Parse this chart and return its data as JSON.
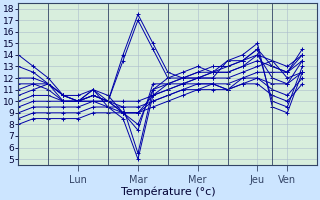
{
  "title": "Température (°c)",
  "bg_color": "#cce5ff",
  "plot_bg": "#d8eedd",
  "grid_color": "#aabbcc",
  "line_color": "#0000aa",
  "ylim": [
    4.5,
    18.5
  ],
  "xlim": [
    0.0,
    120.0
  ],
  "yticks": [
    5,
    6,
    7,
    8,
    9,
    10,
    11,
    12,
    13,
    14,
    15,
    16,
    17,
    18
  ],
  "day_labels": [
    "Lun",
    "Mar",
    "Mer",
    "Jeu",
    "Ven"
  ],
  "day_tick_x": [
    24,
    48,
    72,
    96,
    108
  ],
  "day_sep_x": [
    12,
    36,
    60,
    84,
    102
  ],
  "forecasts": [
    [
      0,
      14.0,
      6,
      13.0,
      12,
      12.0,
      18,
      10.5,
      24,
      10.0,
      30,
      10.0,
      36,
      9.5,
      42,
      8.5,
      48,
      5.0,
      54,
      10.5,
      60,
      11.5,
      66,
      12.0,
      72,
      12.5,
      78,
      12.5,
      84,
      12.5,
      90,
      13.0,
      96,
      14.0,
      102,
      13.5,
      108,
      12.0,
      114,
      12.5
    ],
    [
      0,
      13.0,
      6,
      12.5,
      12,
      11.5,
      18,
      10.5,
      24,
      10.0,
      30,
      10.0,
      36,
      10.0,
      42,
      9.5,
      48,
      5.5,
      54,
      11.0,
      60,
      12.0,
      66,
      12.5,
      72,
      13.0,
      78,
      12.5,
      84,
      13.0,
      90,
      13.5,
      96,
      14.5,
      102,
      13.0,
      108,
      12.5,
      114,
      14.0
    ],
    [
      0,
      12.0,
      6,
      12.0,
      12,
      11.5,
      18,
      10.5,
      24,
      10.0,
      30,
      10.5,
      36,
      10.0,
      42,
      14.0,
      48,
      17.5,
      54,
      15.0,
      60,
      12.5,
      66,
      12.0,
      72,
      12.0,
      78,
      12.0,
      84,
      13.5,
      90,
      14.0,
      96,
      15.0,
      102,
      9.5,
      108,
      9.0,
      114,
      12.5
    ],
    [
      0,
      11.5,
      6,
      11.5,
      12,
      11.0,
      18,
      10.0,
      24,
      10.0,
      30,
      10.5,
      36,
      10.0,
      42,
      13.5,
      48,
      17.0,
      54,
      14.5,
      60,
      12.0,
      66,
      12.0,
      72,
      12.0,
      78,
      12.5,
      84,
      13.5,
      90,
      13.5,
      96,
      14.5,
      102,
      10.0,
      108,
      9.5,
      114,
      13.0
    ],
    [
      0,
      11.0,
      6,
      11.5,
      12,
      11.5,
      18,
      10.5,
      24,
      10.5,
      30,
      11.0,
      36,
      9.5,
      42,
      9.0,
      48,
      7.5,
      54,
      11.5,
      60,
      11.5,
      66,
      12.0,
      72,
      12.5,
      78,
      13.0,
      84,
      13.0,
      90,
      13.5,
      96,
      14.0,
      102,
      12.0,
      108,
      11.5,
      114,
      13.5
    ],
    [
      0,
      10.5,
      6,
      11.0,
      12,
      11.5,
      18,
      10.0,
      24,
      10.0,
      30,
      11.0,
      36,
      10.0,
      42,
      9.0,
      48,
      8.0,
      54,
      11.0,
      60,
      11.5,
      66,
      11.5,
      72,
      12.0,
      78,
      12.5,
      84,
      12.5,
      90,
      13.0,
      96,
      13.5,
      102,
      13.0,
      108,
      12.5,
      114,
      14.5
    ],
    [
      0,
      10.0,
      6,
      10.5,
      12,
      10.5,
      18,
      10.0,
      24,
      10.0,
      30,
      11.0,
      36,
      10.5,
      42,
      9.0,
      48,
      9.0,
      54,
      10.5,
      60,
      11.0,
      66,
      11.5,
      72,
      12.0,
      78,
      12.0,
      84,
      12.0,
      90,
      12.5,
      96,
      13.0,
      102,
      13.5,
      108,
      13.0,
      114,
      14.0
    ],
    [
      0,
      9.5,
      6,
      10.0,
      12,
      10.0,
      18,
      10.0,
      24,
      10.0,
      30,
      10.5,
      36,
      10.0,
      42,
      9.0,
      48,
      9.0,
      54,
      10.0,
      60,
      10.5,
      66,
      11.0,
      72,
      11.5,
      78,
      11.5,
      84,
      11.0,
      90,
      12.0,
      96,
      12.5,
      102,
      12.5,
      108,
      12.5,
      114,
      13.5
    ],
    [
      0,
      9.0,
      6,
      9.5,
      12,
      9.5,
      18,
      9.5,
      24,
      9.5,
      30,
      10.0,
      36,
      10.0,
      42,
      10.0,
      48,
      10.0,
      54,
      10.5,
      60,
      11.0,
      66,
      11.5,
      72,
      11.5,
      78,
      11.5,
      84,
      11.0,
      90,
      11.5,
      96,
      12.0,
      102,
      11.5,
      108,
      11.5,
      114,
      12.5
    ],
    [
      0,
      8.5,
      6,
      9.0,
      12,
      9.0,
      18,
      9.0,
      24,
      9.0,
      30,
      9.5,
      36,
      9.5,
      42,
      9.5,
      48,
      9.5,
      54,
      10.0,
      60,
      10.5,
      66,
      11.0,
      72,
      11.0,
      78,
      11.5,
      84,
      11.5,
      90,
      12.0,
      96,
      12.0,
      102,
      11.0,
      108,
      10.5,
      114,
      12.0
    ],
    [
      0,
      8.0,
      6,
      8.5,
      12,
      8.5,
      18,
      8.5,
      24,
      8.5,
      30,
      9.0,
      36,
      9.0,
      42,
      9.0,
      48,
      9.0,
      54,
      9.5,
      60,
      10.0,
      66,
      10.5,
      72,
      11.0,
      78,
      11.0,
      84,
      11.0,
      90,
      11.5,
      96,
      11.5,
      102,
      10.5,
      108,
      10.0,
      114,
      11.5
    ]
  ]
}
